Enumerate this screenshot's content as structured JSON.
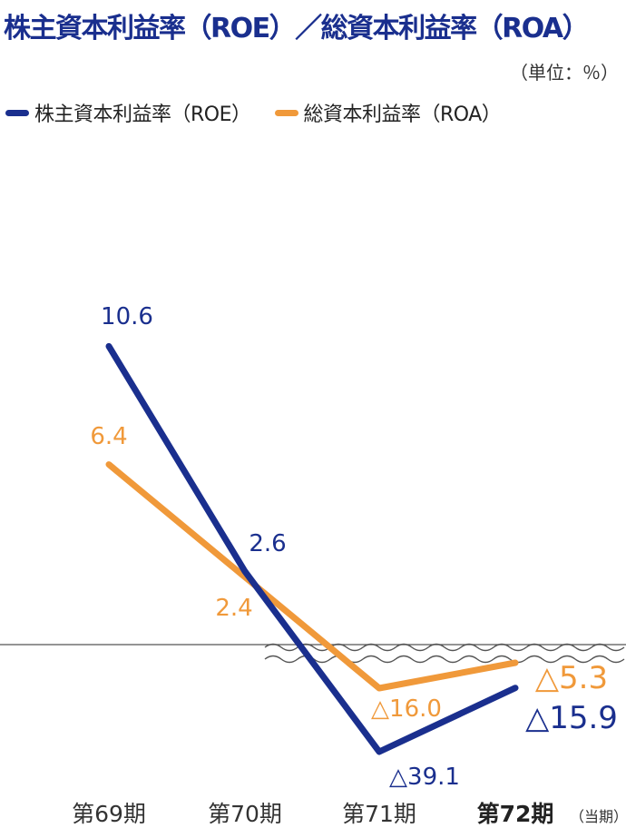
{
  "chart_data": {
    "type": "line",
    "title": "株主資本利益率（ROE）／総資本利益率（ROA）",
    "unit_label": "（単位：％）",
    "categories": [
      "第69期",
      "第70期",
      "第71期",
      "第72期"
    ],
    "current_period_note": "（当期）",
    "series": [
      {
        "name": "株主資本利益率（ROE）",
        "color": "#1a2f8e",
        "values": [
          10.6,
          2.6,
          -39.1,
          -15.9
        ],
        "labels": [
          "10.6",
          "2.6",
          "△39.1",
          "△15.9"
        ]
      },
      {
        "name": "総資本利益率（ROA）",
        "color": "#f0993a",
        "values": [
          6.4,
          2.4,
          -16.0,
          -5.3
        ],
        "labels": [
          "6.4",
          "2.4",
          "△16.0",
          "△5.3"
        ]
      }
    ],
    "axis_break": true,
    "grid": false,
    "legend_position": "top-left"
  }
}
